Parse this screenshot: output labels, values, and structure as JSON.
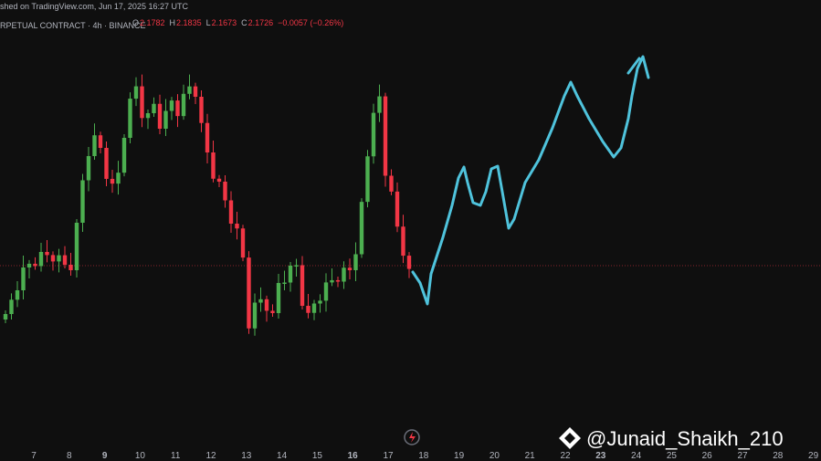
{
  "header": {
    "published": "shed on TradingView.com, Jun 17, 2025 16:27 UTC",
    "symbol": "RPETUAL CONTRACT · 4h · BINANCE",
    "ohlc": [
      {
        "label": "O",
        "value": "2.1782"
      },
      {
        "label": "H",
        "value": "2.1835"
      },
      {
        "label": "L",
        "value": "2.1673"
      },
      {
        "label": "C",
        "value": "2.1726"
      }
    ],
    "change": "−0.0057 (−0.26%)"
  },
  "x_axis": {
    "labels": [
      "7",
      "8",
      "9",
      "10",
      "11",
      "12",
      "13",
      "14",
      "15",
      "16",
      "17",
      "18",
      "19",
      "20",
      "21",
      "22",
      "23",
      "24",
      "25",
      "26",
      "27",
      "28",
      "29"
    ]
  },
  "watermark": "@Junaid_Shaikh_210"
}
